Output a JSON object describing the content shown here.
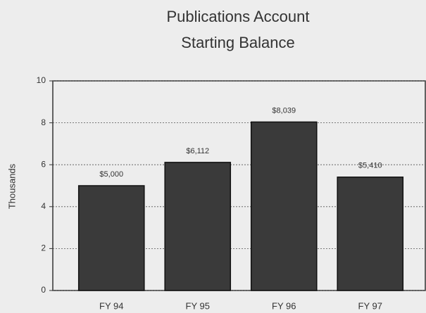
{
  "chart_data": {
    "type": "bar",
    "title": [
      "Publications Account",
      "Starting Balance"
    ],
    "y_label": "Thousands",
    "categories": [
      "FY 94",
      "FY 95",
      "FY 96",
      "FY 97"
    ],
    "values": [
      5.0,
      6.112,
      8.039,
      5.41
    ],
    "value_labels": [
      "$5,000",
      "$6,112",
      "$8,039",
      "$5,410"
    ],
    "color": "#3a3a3a",
    "ylim": [
      0,
      10
    ],
    "yticks": [
      0,
      2,
      4,
      6,
      8,
      10
    ],
    "grid": true
  }
}
